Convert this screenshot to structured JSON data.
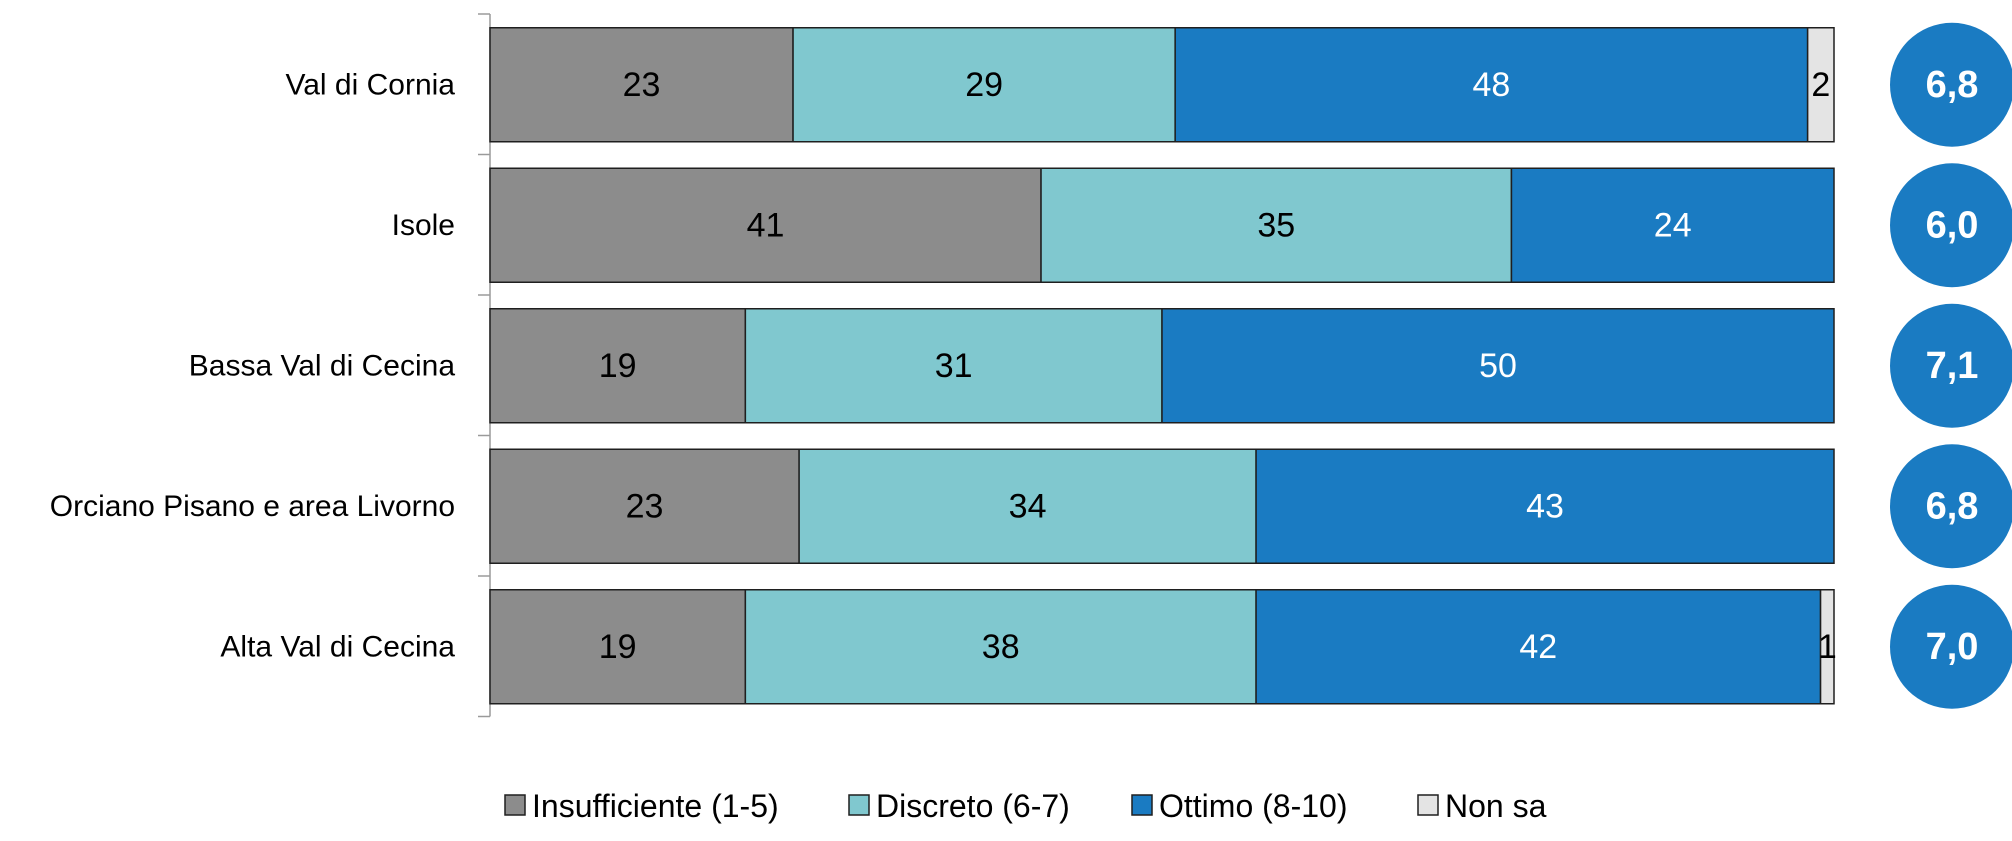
{
  "chart_data": {
    "type": "bar",
    "orientation": "horizontal",
    "stacked": true,
    "categories": [
      "Val di Cornia",
      "Isole",
      "Bassa Val di Cecina",
      "Orciano Pisano e area Livorno",
      "Alta Val di Cecina"
    ],
    "series": [
      {
        "name": "Insufficiente (1-5)",
        "values": [
          23,
          41,
          19,
          23,
          19
        ],
        "color": "#8c8c8c",
        "label_color": "#000000"
      },
      {
        "name": "Discreto (6-7)",
        "values": [
          29,
          35,
          31,
          34,
          38
        ],
        "color": "#80c8cf",
        "label_color": "#000000"
      },
      {
        "name": "Ottimo (8-10)",
        "values": [
          48,
          24,
          50,
          43,
          42
        ],
        "color": "#1a7bc2",
        "label_color": "#ffffff"
      },
      {
        "name": "Non sa",
        "values": [
          2,
          0,
          0,
          0,
          1
        ],
        "color": "#e4e4e4",
        "label_color": "#000000"
      }
    ],
    "scores": [
      "6,8",
      "6,0",
      "7,1",
      "6,8",
      "7,0"
    ],
    "score_color": "#1a7bc2",
    "legend": "bottom"
  }
}
